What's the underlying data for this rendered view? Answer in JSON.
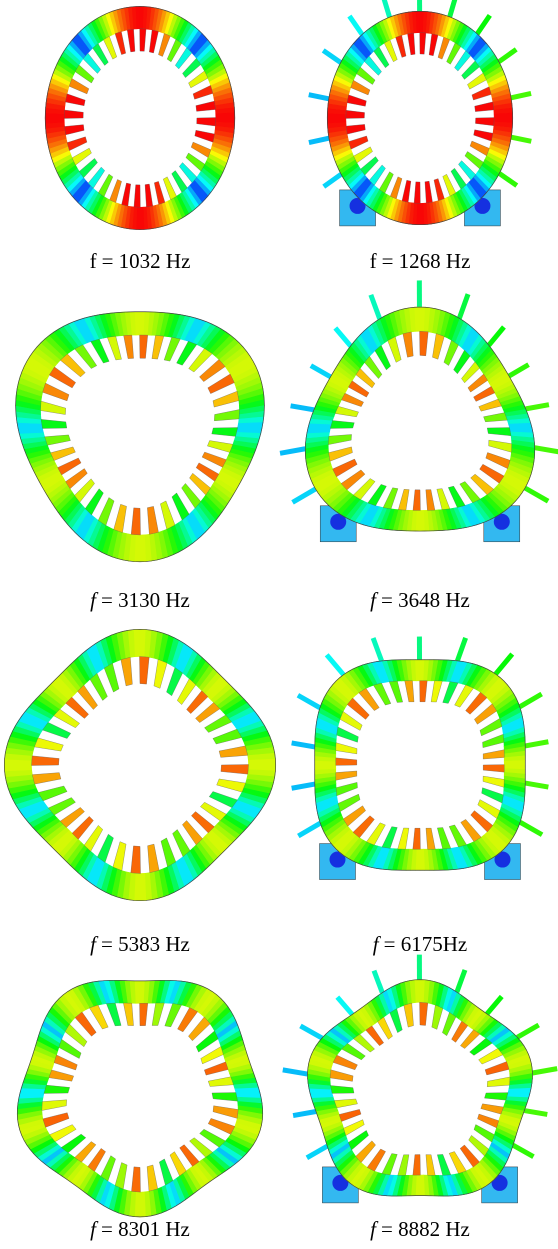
{
  "figure": {
    "panels": [
      {
        "symbol": "f",
        "text": "= 1032 Hz",
        "italic_symbol": false
      },
      {
        "symbol": "f",
        "text": "= 1268 Hz",
        "italic_symbol": false
      },
      {
        "symbol": "f",
        "text": "= 3130 Hz",
        "italic_symbol": true
      },
      {
        "symbol": "f",
        "text": "= 3648 Hz",
        "italic_symbol": true
      },
      {
        "symbol": "f",
        "text": "= 5383 Hz",
        "italic_symbol": true
      },
      {
        "symbol": "f",
        "text": "= 6175Hz",
        "italic_symbol": true
      },
      {
        "symbol": "f",
        "text": "= 8301 Hz",
        "italic_symbol": true
      },
      {
        "symbol": "f",
        "text": "= 8882 Hz",
        "italic_symbol": true
      }
    ]
  }
}
